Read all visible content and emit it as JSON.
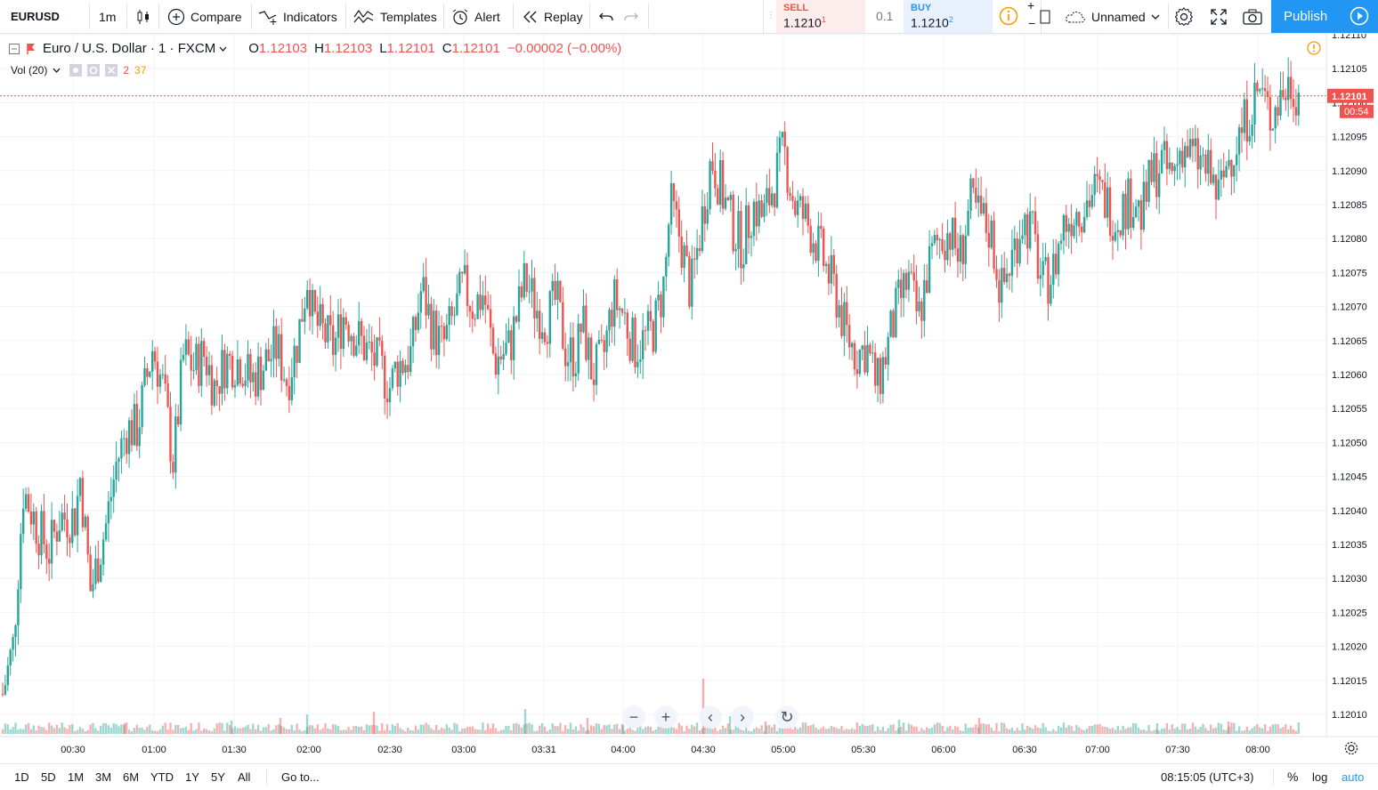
{
  "toolbar": {
    "symbol": "EURUSD",
    "interval": "1m",
    "compare": "Compare",
    "indicators": "Indicators",
    "templates": "Templates",
    "alert": "Alert",
    "replay": "Replay",
    "layout_name": "Unnamed",
    "publish": "Publish"
  },
  "trade": {
    "sell_label": "SELL",
    "sell_price": "1.1210",
    "sell_sup": "1",
    "spread": "0.1",
    "buy_label": "BUY",
    "buy_price": "1.1210",
    "buy_sup": "2",
    "plus": "+",
    "minus": "−"
  },
  "legend": {
    "title": "Euro / U.S. Dollar · 1 · FXCM",
    "o_label": "O",
    "o": "1.12103",
    "h_label": "H",
    "h": "1.12103",
    "l_label": "L",
    "l": "1.12101",
    "c_label": "C",
    "c": "1.12101",
    "change": "−0.00002 (−0.00%)",
    "vol_label": "Vol (20)",
    "vol_a": "2",
    "vol_b": "37"
  },
  "price_axis": {
    "ticks": [
      "1.12110",
      "1.12105",
      "1.12100",
      "1.12095",
      "1.12090",
      "1.12085",
      "1.12080",
      "1.12075",
      "1.12070",
      "1.12065",
      "1.12060",
      "1.12055",
      "1.12050",
      "1.12045",
      "1.12040",
      "1.12035",
      "1.12030",
      "1.12025",
      "1.12020",
      "1.12015",
      "1.12010"
    ],
    "current_price": "1.12101",
    "countdown": "00:54"
  },
  "time_axis": {
    "ticks": [
      "00:30",
      "01:00",
      "01:30",
      "02:00",
      "02:30",
      "03:00",
      "03:31",
      "04:00",
      "04:30",
      "05:00",
      "05:30",
      "06:00",
      "06:30",
      "07:00",
      "07:30",
      "08:00"
    ]
  },
  "bottom": {
    "ranges": [
      "1D",
      "5D",
      "1M",
      "3M",
      "6M",
      "YTD",
      "1Y",
      "5Y",
      "All"
    ],
    "goto": "Go to...",
    "clock": "08:15:05 (UTC+3)",
    "percent": "%",
    "log": "log",
    "auto": "auto"
  },
  "colors": {
    "up": "#26a69a",
    "down": "#ef5350",
    "accent": "#2196f3",
    "warning": "#ff9800"
  },
  "chart_data": {
    "type": "candlestick",
    "symbol": "EURUSD",
    "ylim": [
      1.12007,
      1.12111
    ],
    "price_ticks": [
      1.1211,
      1.12105,
      1.121,
      1.12095,
      1.1209,
      1.12085,
      1.1208,
      1.12075,
      1.1207,
      1.12065,
      1.1206,
      1.12055,
      1.1205,
      1.12045,
      1.1204,
      1.12035,
      1.1203,
      1.12025,
      1.1202,
      1.12015,
      1.1201
    ],
    "current_price": 1.12101,
    "path": [
      [
        0,
        1.12013
      ],
      [
        4,
        1.1202
      ],
      [
        8,
        1.12043
      ],
      [
        14,
        1.12037
      ],
      [
        18,
        1.12034
      ],
      [
        22,
        1.12039
      ],
      [
        28,
        1.12039
      ],
      [
        30,
        1.12045
      ],
      [
        34,
        1.12028
      ],
      [
        40,
        1.12038
      ],
      [
        44,
        1.12047
      ],
      [
        48,
        1.12052
      ],
      [
        52,
        1.12052
      ],
      [
        58,
        1.12064
      ],
      [
        62,
        1.12058
      ],
      [
        66,
        1.12047
      ],
      [
        70,
        1.12063
      ],
      [
        74,
        1.12061
      ],
      [
        78,
        1.12063
      ],
      [
        82,
        1.12058
      ],
      [
        86,
        1.12062
      ],
      [
        92,
        1.12062
      ],
      [
        96,
        1.12059
      ],
      [
        100,
        1.12061
      ],
      [
        106,
        1.12064
      ],
      [
        110,
        1.12059
      ],
      [
        114,
        1.12065
      ],
      [
        118,
        1.12075
      ],
      [
        120,
        1.12068
      ],
      [
        124,
        1.12066
      ],
      [
        128,
        1.12064
      ],
      [
        132,
        1.12069
      ],
      [
        136,
        1.12066
      ],
      [
        140,
        1.12064
      ],
      [
        146,
        1.12061
      ],
      [
        150,
        1.12058
      ],
      [
        152,
        1.12061
      ],
      [
        158,
        1.12063
      ],
      [
        162,
        1.12073
      ],
      [
        166,
        1.12067
      ],
      [
        170,
        1.12064
      ],
      [
        174,
        1.12068
      ],
      [
        178,
        1.12073
      ],
      [
        182,
        1.1207
      ],
      [
        186,
        1.12072
      ],
      [
        190,
        1.12062
      ],
      [
        196,
        1.12064
      ],
      [
        202,
        1.12074
      ],
      [
        206,
        1.1207
      ],
      [
        210,
        1.12068
      ],
      [
        214,
        1.12071
      ],
      [
        218,
        1.12063
      ],
      [
        222,
        1.12063
      ],
      [
        224,
        1.12068
      ],
      [
        228,
        1.1206
      ],
      [
        232,
        1.12062
      ],
      [
        236,
        1.12071
      ],
      [
        240,
        1.12069
      ],
      [
        244,
        1.12064
      ],
      [
        248,
        1.12065
      ],
      [
        252,
        1.12067
      ],
      [
        256,
        1.12074
      ],
      [
        258,
        1.12085
      ],
      [
        262,
        1.1208
      ],
      [
        266,
        1.12072
      ],
      [
        270,
        1.12082
      ],
      [
        274,
        1.12092
      ],
      [
        278,
        1.12087
      ],
      [
        282,
        1.12082
      ],
      [
        286,
        1.12079
      ],
      [
        290,
        1.12085
      ],
      [
        294,
        1.12083
      ],
      [
        298,
        1.12088
      ],
      [
        302,
        1.12093
      ],
      [
        306,
        1.12085
      ],
      [
        310,
        1.12083
      ],
      [
        314,
        1.1208
      ],
      [
        318,
        1.12076
      ],
      [
        322,
        1.12072
      ],
      [
        326,
        1.12066
      ],
      [
        330,
        1.12063
      ],
      [
        334,
        1.12064
      ],
      [
        338,
        1.12058
      ],
      [
        342,
        1.12064
      ],
      [
        346,
        1.1207
      ],
      [
        350,
        1.12074
      ],
      [
        354,
        1.12068
      ],
      [
        358,
        1.12076
      ],
      [
        362,
        1.1208
      ],
      [
        366,
        1.12081
      ],
      [
        370,
        1.12077
      ],
      [
        374,
        1.12085
      ],
      [
        378,
        1.12083
      ],
      [
        382,
        1.12081
      ],
      [
        386,
        1.12072
      ],
      [
        390,
        1.12077
      ],
      [
        394,
        1.12083
      ],
      [
        398,
        1.12081
      ],
      [
        402,
        1.12073
      ],
      [
        406,
        1.12075
      ],
      [
        410,
        1.12082
      ],
      [
        414,
        1.12084
      ],
      [
        418,
        1.12085
      ],
      [
        422,
        1.12087
      ],
      [
        426,
        1.12086
      ],
      [
        430,
        1.12083
      ],
      [
        434,
        1.12085
      ],
      [
        438,
        1.12086
      ],
      [
        440,
        1.12083
      ],
      [
        444,
        1.12089
      ],
      [
        448,
        1.12091
      ],
      [
        452,
        1.12089
      ],
      [
        456,
        1.12094
      ],
      [
        460,
        1.12092
      ],
      [
        464,
        1.12091
      ],
      [
        468,
        1.12088
      ],
      [
        470,
        1.12086
      ],
      [
        474,
        1.12092
      ],
      [
        478,
        1.12095
      ],
      [
        482,
        1.12099
      ],
      [
        486,
        1.12102
      ],
      [
        490,
        1.12098
      ],
      [
        494,
        1.12101
      ],
      [
        498,
        1.12103
      ],
      [
        502,
        1.12101
      ]
    ],
    "volume_spikes": [
      [
        140,
        12
      ],
      [
        260,
        15
      ],
      [
        315,
        18
      ],
      [
        345,
        22
      ],
      [
        420,
        25
      ],
      [
        590,
        28
      ],
      [
        660,
        18
      ],
      [
        700,
        10
      ],
      [
        790,
        62
      ],
      [
        820,
        20
      ],
      [
        860,
        14
      ],
      [
        1010,
        16
      ],
      [
        1100,
        18
      ],
      [
        1300,
        12
      ],
      [
        1380,
        14
      ]
    ],
    "time_ticks": [
      "00:30",
      "01:00",
      "01:30",
      "02:00",
      "02:30",
      "03:00",
      "03:31",
      "04:00",
      "04:30",
      "05:00",
      "05:30",
      "06:00",
      "06:30",
      "07:00",
      "07:30",
      "08:00"
    ]
  }
}
